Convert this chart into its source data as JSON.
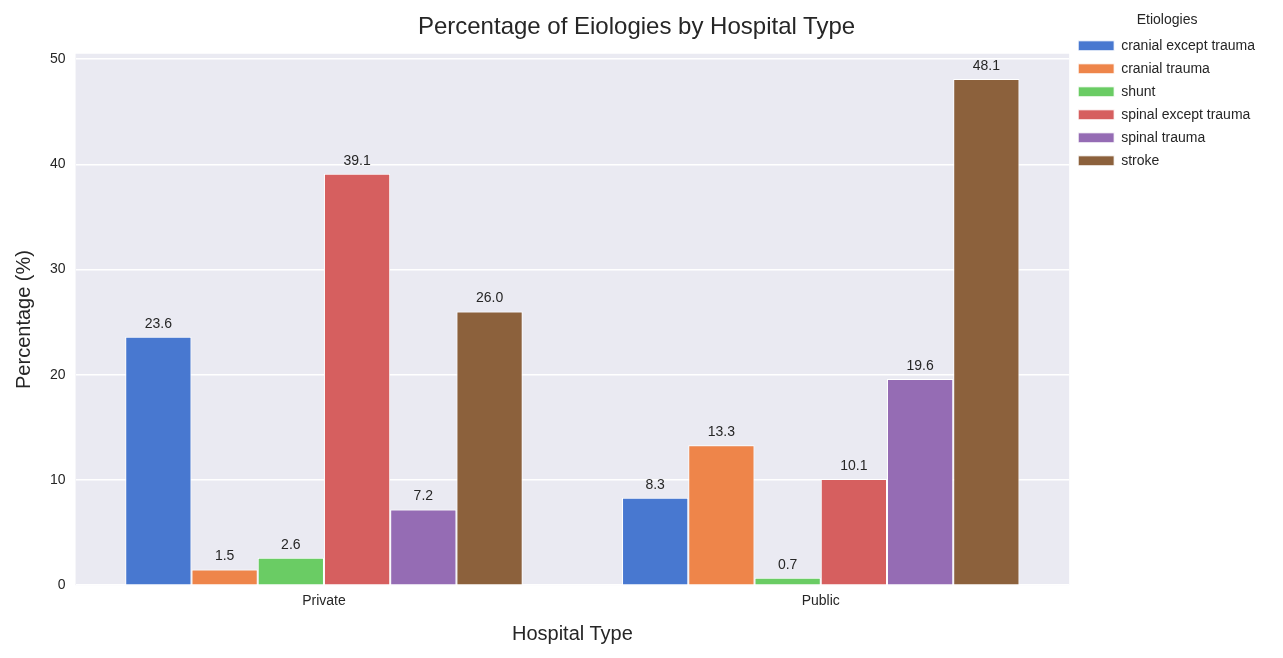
{
  "chart_data": {
    "type": "bar",
    "title": "Percentage of Eiologies by Hospital Type",
    "xlabel": "Hospital Type",
    "ylabel": "Percentage (%)",
    "legend_title": "Etiologies",
    "categories": [
      "Private",
      "Public"
    ],
    "series": [
      {
        "name": "cranial except trauma",
        "color": "#4878d0",
        "values": [
          23.6,
          8.3
        ],
        "value_labels": [
          "23.6",
          "8.3"
        ]
      },
      {
        "name": "cranial trauma",
        "color": "#ee854a",
        "values": [
          1.5,
          13.3
        ],
        "value_labels": [
          "1.5",
          "13.3"
        ]
      },
      {
        "name": "shunt",
        "color": "#6acc64",
        "values": [
          2.6,
          0.7
        ],
        "value_labels": [
          "2.6",
          "0.7"
        ]
      },
      {
        "name": "spinal except trauma",
        "color": "#d65f5f",
        "values": [
          39.1,
          10.1
        ],
        "value_labels": [
          "39.1",
          "10.1"
        ]
      },
      {
        "name": "spinal trauma",
        "color": "#956cb4",
        "values": [
          7.2,
          19.6
        ],
        "value_labels": [
          "7.2",
          "19.6"
        ]
      },
      {
        "name": "stroke",
        "color": "#8c613c",
        "values": [
          26.0,
          48.1
        ],
        "value_labels": [
          "26.0",
          "48.1"
        ]
      }
    ],
    "ylim": [
      0,
      50.5
    ],
    "yticks": [
      0,
      10,
      20,
      30,
      40,
      50
    ],
    "grid": "y",
    "legend": "top right"
  }
}
